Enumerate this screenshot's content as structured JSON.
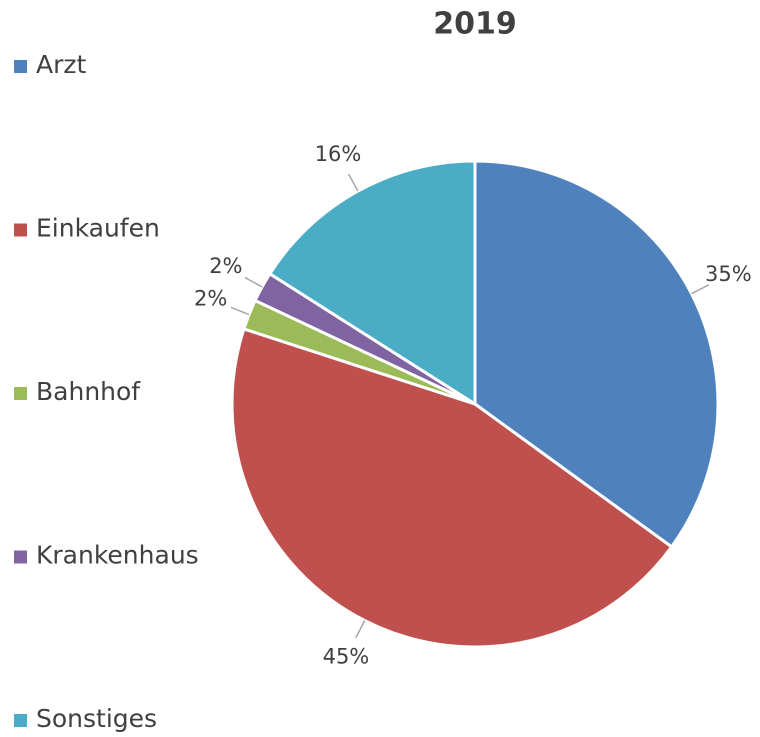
{
  "chart_data": {
    "type": "pie",
    "title": "2019",
    "categories": [
      "Arzt",
      "Einkaufen",
      "Bahnhof",
      "Krankenhaus",
      "Sonstiges"
    ],
    "values": [
      35,
      45,
      2,
      2,
      16
    ],
    "value_labels": [
      "35%",
      "45%",
      "2%",
      "2%",
      "16%"
    ],
    "colors": [
      "#4f81bd",
      "#c0504d",
      "#9bbb59",
      "#8064a2",
      "#4bacc6"
    ],
    "legend": "left"
  }
}
